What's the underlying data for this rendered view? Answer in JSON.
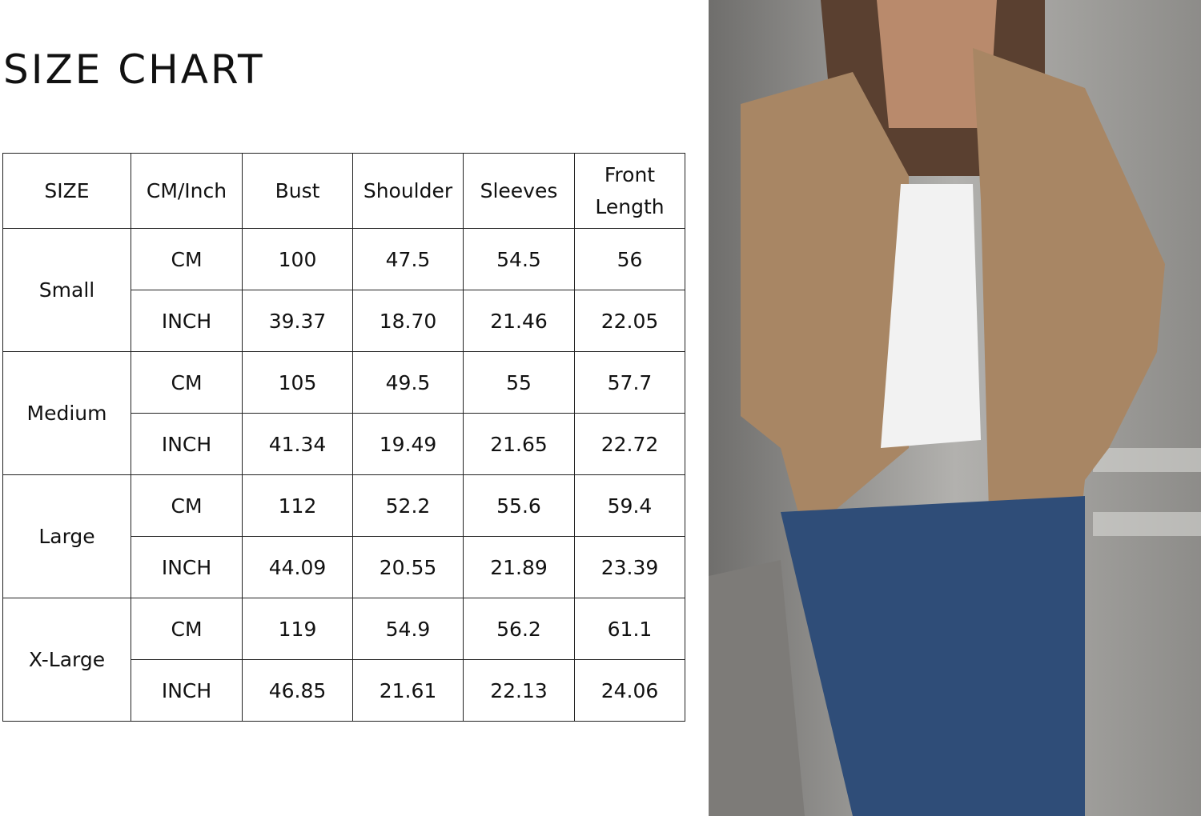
{
  "title": "SIZE CHART",
  "table": {
    "headers": [
      "SIZE",
      "CM/Inch",
      "Bust",
      "Shoulder",
      "Sleeves",
      "Front Length"
    ],
    "rows": [
      {
        "size": "Small",
        "cm": [
          "CM",
          "100",
          "47.5",
          "54.5",
          "56"
        ],
        "inch": [
          "INCH",
          "39.37",
          "18.70",
          "21.46",
          "22.05"
        ]
      },
      {
        "size": "Medium",
        "cm": [
          "CM",
          "105",
          "49.5",
          "55",
          "57.7"
        ],
        "inch": [
          "INCH",
          "41.34",
          "19.49",
          "21.65",
          "22.72"
        ]
      },
      {
        "size": "Large",
        "cm": [
          "CM",
          "112",
          "52.2",
          "55.6",
          "59.4"
        ],
        "inch": [
          "INCH",
          "44.09",
          "20.55",
          "21.89",
          "23.39"
        ]
      },
      {
        "size": "X-Large",
        "cm": [
          "CM",
          "119",
          "54.9",
          "56.2",
          "61.1"
        ],
        "inch": [
          "INCH",
          "46.85",
          "21.61",
          "22.13",
          "24.06"
        ]
      }
    ]
  },
  "photo": {
    "colors": {
      "jacket": "#a88664",
      "top": "#f2f2f2",
      "jeans": "#2f4d78",
      "background": "#9a9a98"
    }
  }
}
